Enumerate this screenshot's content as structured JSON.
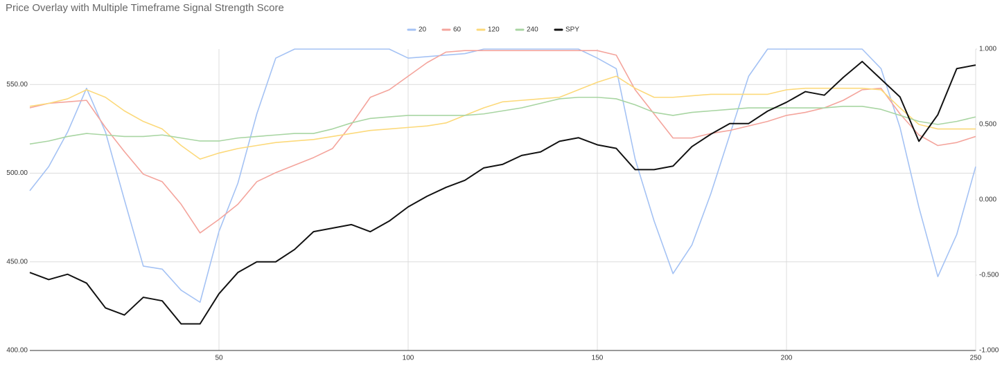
{
  "chart_data": {
    "type": "line",
    "title": "Price Overlay with Multiple Timeframe Signal Strength Score",
    "x": [
      0,
      5,
      10,
      15,
      20,
      25,
      30,
      35,
      40,
      45,
      50,
      55,
      60,
      65,
      70,
      75,
      80,
      85,
      90,
      95,
      100,
      105,
      110,
      115,
      120,
      125,
      130,
      135,
      140,
      145,
      150,
      155,
      160,
      165,
      170,
      175,
      180,
      185,
      190,
      195,
      200,
      205,
      210,
      215,
      220,
      225,
      230,
      235,
      240,
      245,
      250
    ],
    "series": [
      {
        "name": "20",
        "color": "#a4c2f4",
        "axis": "y2",
        "values": [
          0.06,
          0.22,
          0.45,
          0.74,
          0.45,
          0.0,
          -0.44,
          -0.46,
          -0.6,
          -0.68,
          -0.21,
          0.11,
          0.57,
          0.94,
          1,
          1,
          1,
          1,
          1,
          1,
          0.94,
          0.95,
          0.96,
          0.97,
          1,
          1,
          1,
          1,
          1,
          1,
          0.94,
          0.87,
          0.27,
          -0.14,
          -0.49,
          -0.3,
          0.04,
          0.43,
          0.82,
          1,
          1,
          1,
          1,
          1,
          1,
          0.87,
          0.48,
          -0.05,
          -0.51,
          -0.23,
          0.22
        ]
      },
      {
        "name": "60",
        "color": "#f4a49c",
        "axis": "y2",
        "values": [
          0.61,
          0.64,
          0.65,
          0.66,
          0.48,
          0.32,
          0.17,
          0.12,
          -0.03,
          -0.22,
          -0.13,
          -0.03,
          0.12,
          0.18,
          0.23,
          0.28,
          0.34,
          0.5,
          0.68,
          0.73,
          0.82,
          0.91,
          0.98,
          0.99,
          0.99,
          0.99,
          0.99,
          0.99,
          0.99,
          0.99,
          0.99,
          0.96,
          0.73,
          0.57,
          0.41,
          0.41,
          0.44,
          0.46,
          0.49,
          0.52,
          0.56,
          0.58,
          0.61,
          0.66,
          0.73,
          0.74,
          0.57,
          0.43,
          0.36,
          0.38,
          0.42
        ]
      },
      {
        "name": "120",
        "color": "#fcd97a",
        "axis": "y2",
        "values": [
          0.62,
          0.64,
          0.67,
          0.73,
          0.68,
          0.59,
          0.52,
          0.47,
          0.36,
          0.27,
          0.31,
          0.34,
          0.36,
          0.38,
          0.39,
          0.4,
          0.42,
          0.44,
          0.46,
          0.47,
          0.48,
          0.49,
          0.51,
          0.56,
          0.61,
          0.65,
          0.66,
          0.67,
          0.68,
          0.73,
          0.78,
          0.82,
          0.74,
          0.68,
          0.68,
          0.69,
          0.7,
          0.7,
          0.7,
          0.7,
          0.73,
          0.74,
          0.74,
          0.74,
          0.74,
          0.73,
          0.61,
          0.5,
          0.47,
          0.47,
          0.47
        ]
      },
      {
        "name": "240",
        "color": "#a8d5a2",
        "axis": "y2",
        "values": [
          0.37,
          0.39,
          0.42,
          0.44,
          0.43,
          0.42,
          0.42,
          0.43,
          0.41,
          0.39,
          0.39,
          0.41,
          0.42,
          0.43,
          0.44,
          0.44,
          0.47,
          0.51,
          0.54,
          0.55,
          0.56,
          0.56,
          0.56,
          0.56,
          0.57,
          0.59,
          0.61,
          0.64,
          0.67,
          0.68,
          0.68,
          0.67,
          0.63,
          0.58,
          0.56,
          0.58,
          0.59,
          0.6,
          0.61,
          0.61,
          0.61,
          0.61,
          0.61,
          0.62,
          0.62,
          0.6,
          0.56,
          0.52,
          0.5,
          0.52,
          0.55
        ]
      },
      {
        "name": "SPY",
        "color": "#111111",
        "values": [
          444,
          440,
          443,
          438,
          424,
          420,
          430,
          428,
          415,
          415,
          432,
          444,
          450,
          450,
          457,
          467,
          469,
          471,
          467,
          473,
          481,
          487,
          492,
          496,
          503,
          505,
          510,
          512,
          518,
          520,
          516,
          514,
          502,
          502,
          504,
          515,
          522,
          528,
          528,
          535,
          540,
          546,
          544,
          554,
          563,
          553,
          543,
          518,
          533,
          559,
          561
        ]
      }
    ],
    "xlim": [
      0,
      250
    ],
    "xticks": [
      50,
      100,
      150,
      200,
      250
    ],
    "ylim": [
      400,
      570
    ],
    "yticks": [
      {
        "value": 400,
        "label": "400.00"
      },
      {
        "value": 450,
        "label": "450.00"
      },
      {
        "value": 500,
        "label": "500.00"
      },
      {
        "value": 550,
        "label": "550.00"
      }
    ],
    "y2lim": [
      -1,
      1
    ],
    "y2ticks": [
      {
        "value": -1,
        "label": "-1.000"
      },
      {
        "value": -0.5,
        "label": "-0.500"
      },
      {
        "value": 0,
        "label": "0.000"
      },
      {
        "value": 0.5,
        "label": "0.500"
      },
      {
        "value": 1,
        "label": "1.000"
      }
    ],
    "grid": true,
    "legend": "top"
  }
}
